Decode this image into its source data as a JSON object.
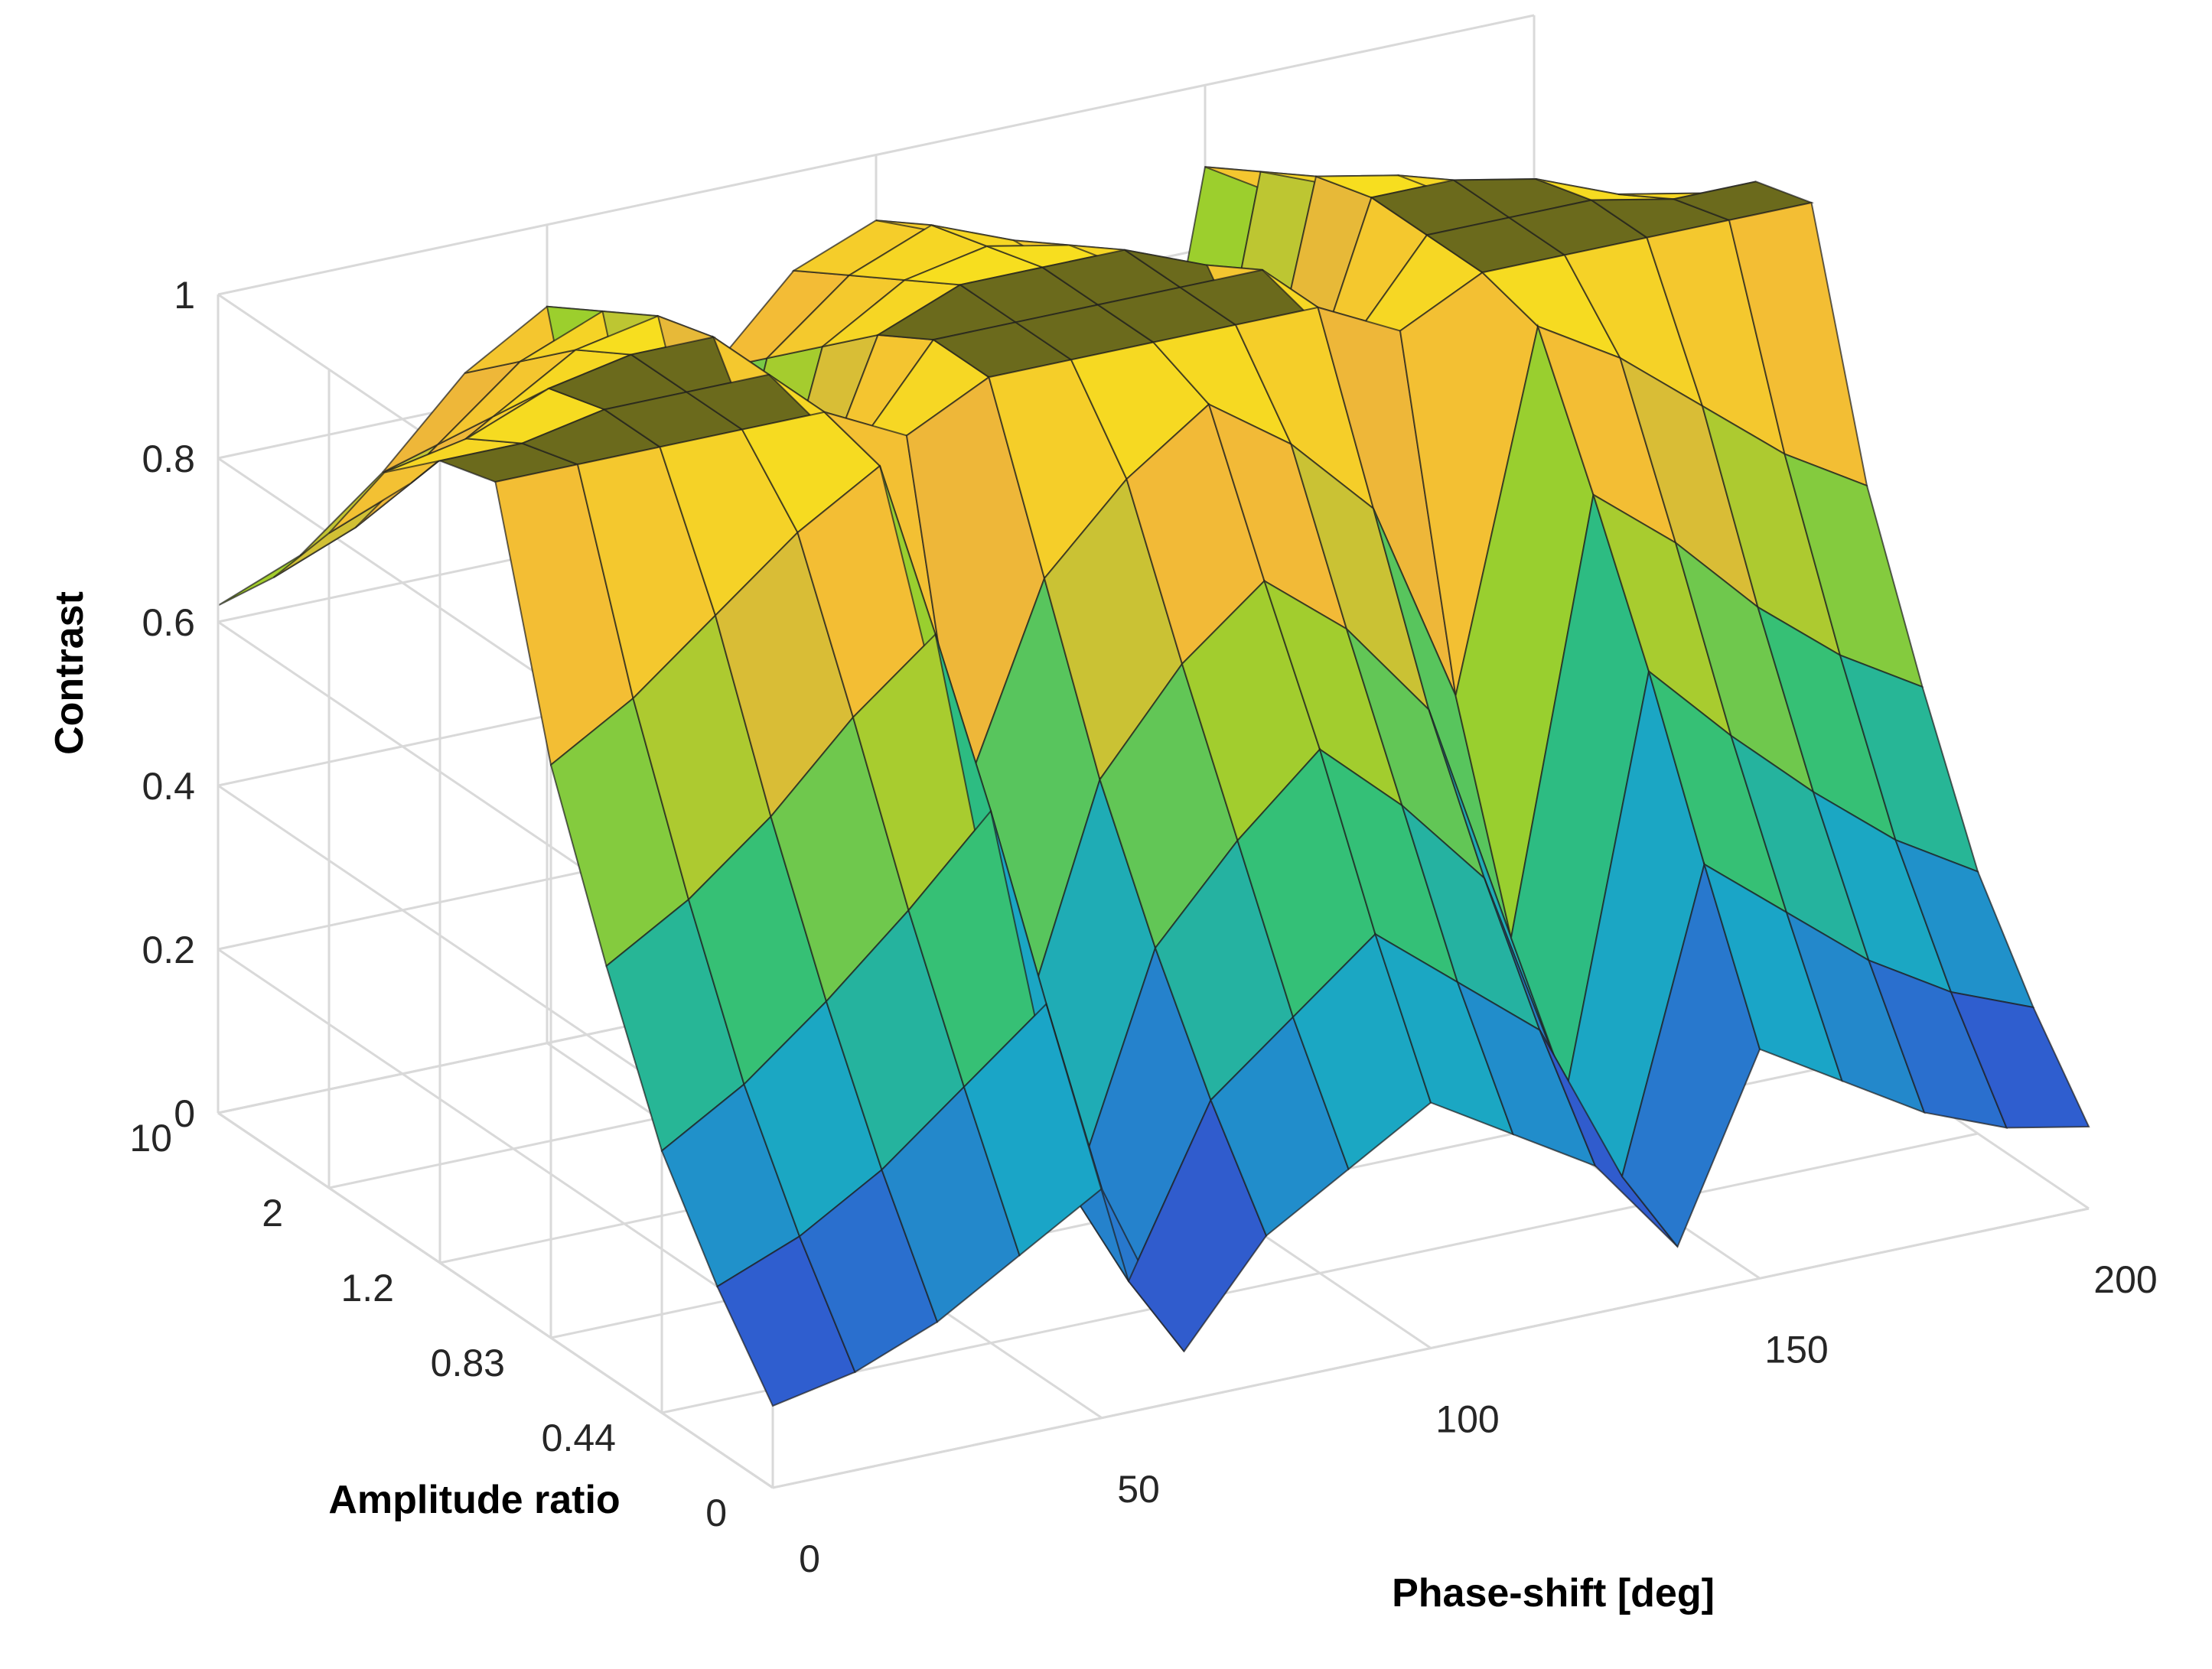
{
  "chart_data": {
    "type": "surface",
    "zlabel": "Contrast",
    "xlabel": "Phase-shift [deg]",
    "ylabel": "Amplitude ratio",
    "x_ticks": [
      "0",
      "50",
      "100",
      "150",
      "200"
    ],
    "y_ticks": [
      "0",
      "0.44",
      "0.83",
      "1.2",
      "2",
      "10"
    ],
    "z_ticks": [
      "0",
      "0.2",
      "0.4",
      "0.6",
      "0.8",
      "1"
    ],
    "xlim": [
      0,
      200
    ],
    "ylim": [
      0,
      10
    ],
    "zlim": [
      0,
      1
    ],
    "grid": true,
    "colormap": [
      "#3e1a8c",
      "#2f5fd0",
      "#1aa5c8",
      "#2fbf7a",
      "#9ccf2d",
      "#f2b63a",
      "#f7e21c"
    ],
    "plateau_color": "#6b6a1c",
    "surface": {
      "phase_deg": [
        0,
        12.5,
        25,
        37.5,
        50,
        62.5,
        75,
        87.5,
        100,
        112.5,
        125,
        137.5,
        150,
        162.5,
        175,
        187.5,
        200
      ],
      "amplitude_ratio_index": [
        0,
        1,
        2,
        3,
        4,
        5,
        6,
        7,
        8,
        9,
        10
      ],
      "contrast": [
        [
          0.1,
          0.12,
          0.16,
          0.22,
          0.28,
          0.06,
          0.18,
          0.24,
          0.3,
          0.24,
          0.18,
          0.06,
          0.28,
          0.22,
          0.16,
          0.12,
          0.1
        ],
        [
          0.2,
          0.24,
          0.3,
          0.38,
          0.46,
          0.1,
          0.3,
          0.38,
          0.46,
          0.38,
          0.3,
          0.1,
          0.46,
          0.38,
          0.3,
          0.24,
          0.2
        ],
        [
          0.32,
          0.38,
          0.46,
          0.55,
          0.65,
          0.16,
          0.44,
          0.55,
          0.64,
          0.55,
          0.44,
          0.16,
          0.65,
          0.55,
          0.46,
          0.38,
          0.32
        ],
        [
          0.5,
          0.56,
          0.64,
          0.74,
          0.82,
          0.3,
          0.6,
          0.72,
          0.8,
          0.72,
          0.6,
          0.3,
          0.82,
          0.74,
          0.64,
          0.56,
          0.5
        ],
        [
          0.7,
          0.76,
          0.84,
          0.92,
          0.98,
          0.55,
          0.8,
          0.9,
          0.97,
          0.9,
          0.8,
          0.55,
          0.98,
          0.92,
          0.84,
          0.76,
          0.7
        ],
        [
          1.0,
          1.0,
          1.0,
          1.0,
          1.0,
          0.95,
          1.0,
          1.0,
          1.0,
          1.0,
          1.0,
          0.95,
          1.0,
          1.0,
          1.0,
          1.0,
          1.0
        ],
        [
          0.98,
          0.98,
          1.0,
          1.0,
          1.0,
          0.88,
          1.0,
          1.0,
          1.0,
          1.0,
          1.0,
          0.88,
          1.0,
          1.0,
          1.0,
          0.98,
          0.98
        ],
        [
          0.92,
          0.94,
          0.98,
          1.0,
          1.0,
          0.72,
          0.96,
          1.0,
          1.0,
          1.0,
          0.96,
          0.72,
          1.0,
          1.0,
          0.98,
          0.94,
          0.92
        ],
        [
          0.8,
          0.84,
          0.9,
          0.96,
          0.98,
          0.55,
          0.9,
          0.96,
          0.98,
          0.96,
          0.9,
          0.55,
          0.98,
          0.96,
          0.9,
          0.84,
          0.8
        ],
        [
          0.7,
          0.74,
          0.82,
          0.9,
          0.94,
          0.45,
          0.84,
          0.92,
          0.96,
          0.92,
          0.84,
          0.45,
          0.94,
          0.9,
          0.82,
          0.74,
          0.7
        ],
        [
          0.62,
          0.66,
          0.74,
          0.84,
          0.9,
          0.38,
          0.78,
          0.88,
          0.92,
          0.88,
          0.78,
          0.38,
          0.9,
          0.84,
          0.74,
          0.66,
          0.62
        ]
      ]
    }
  }
}
